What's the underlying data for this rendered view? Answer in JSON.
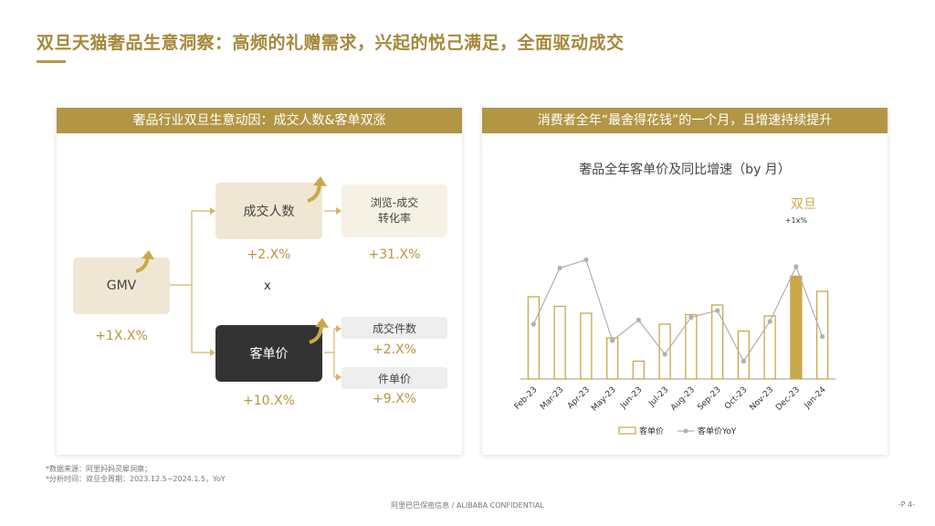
{
  "title": "双旦天猫奢品生意洞察：高频的礼赠需求，兴起的悦己满足，全面驱动成交",
  "left_card": {
    "header": "奢品行业双旦生意动因：成交人数&客单双涨",
    "gmv": {
      "label": "GMV",
      "pct": "+1X.X%"
    },
    "buyers": {
      "label": "成交人数",
      "pct": "+2.X%"
    },
    "conversion": {
      "label": "浏览-成交\n转化率",
      "pct": "+31.X%"
    },
    "multiply": "x",
    "aov": {
      "label": "客单价",
      "pct": "+10.X%"
    },
    "items": {
      "label": "成交件数",
      "pct": "+2.X%"
    },
    "unit_price": {
      "label": "件单价",
      "pct": "+9.X%"
    }
  },
  "right_card": {
    "header": "消费者全年“最舍得花钱”的一个月，且增速持续提升"
  },
  "chart_data": {
    "type": "bar",
    "title": "奢品全年客单价及同比增速（by 月）",
    "categories": [
      "Feb-23",
      "Mar-23",
      "Apr-23",
      "May-23",
      "Jun-23",
      "Jul-23",
      "Aug-23",
      "Sep-23",
      "Oct-23",
      "Nov-23",
      "Dec-23",
      "Jan-24"
    ],
    "series": [
      {
        "name": "客单价",
        "kind": "bar",
        "values": [
          60,
          53,
          48,
          30,
          13,
          40,
          47,
          54,
          35,
          46,
          75,
          64
        ],
        "highlight_index": 10,
        "highlight_color": "#c9a84b",
        "color": "#c9a84b"
      },
      {
        "name": "客单价YoY",
        "kind": "line",
        "values": [
          40,
          81,
          87,
          28,
          43,
          18,
          45,
          50,
          13,
          42,
          82,
          31
        ],
        "color": "#b0b0b0"
      }
    ],
    "annotation": {
      "label": "双旦",
      "sub": "+1x%",
      "index": 10
    },
    "ylim": [
      0,
      100
    ],
    "legend": "bottom",
    "grid": false
  },
  "footnotes": [
    "*数据来源：阿里妈妈灵犀洞察；",
    "*分析时间：双旦全周期：2023.12.5~2024.1.5，YoY"
  ],
  "footer": "阿里巴巴保密信息 / ALIBABA CONFIDENTIAL",
  "page_number": "-P 4-",
  "colors": {
    "gold": "#b29645",
    "pct": "#b8963f",
    "dark_box": "#333333"
  }
}
